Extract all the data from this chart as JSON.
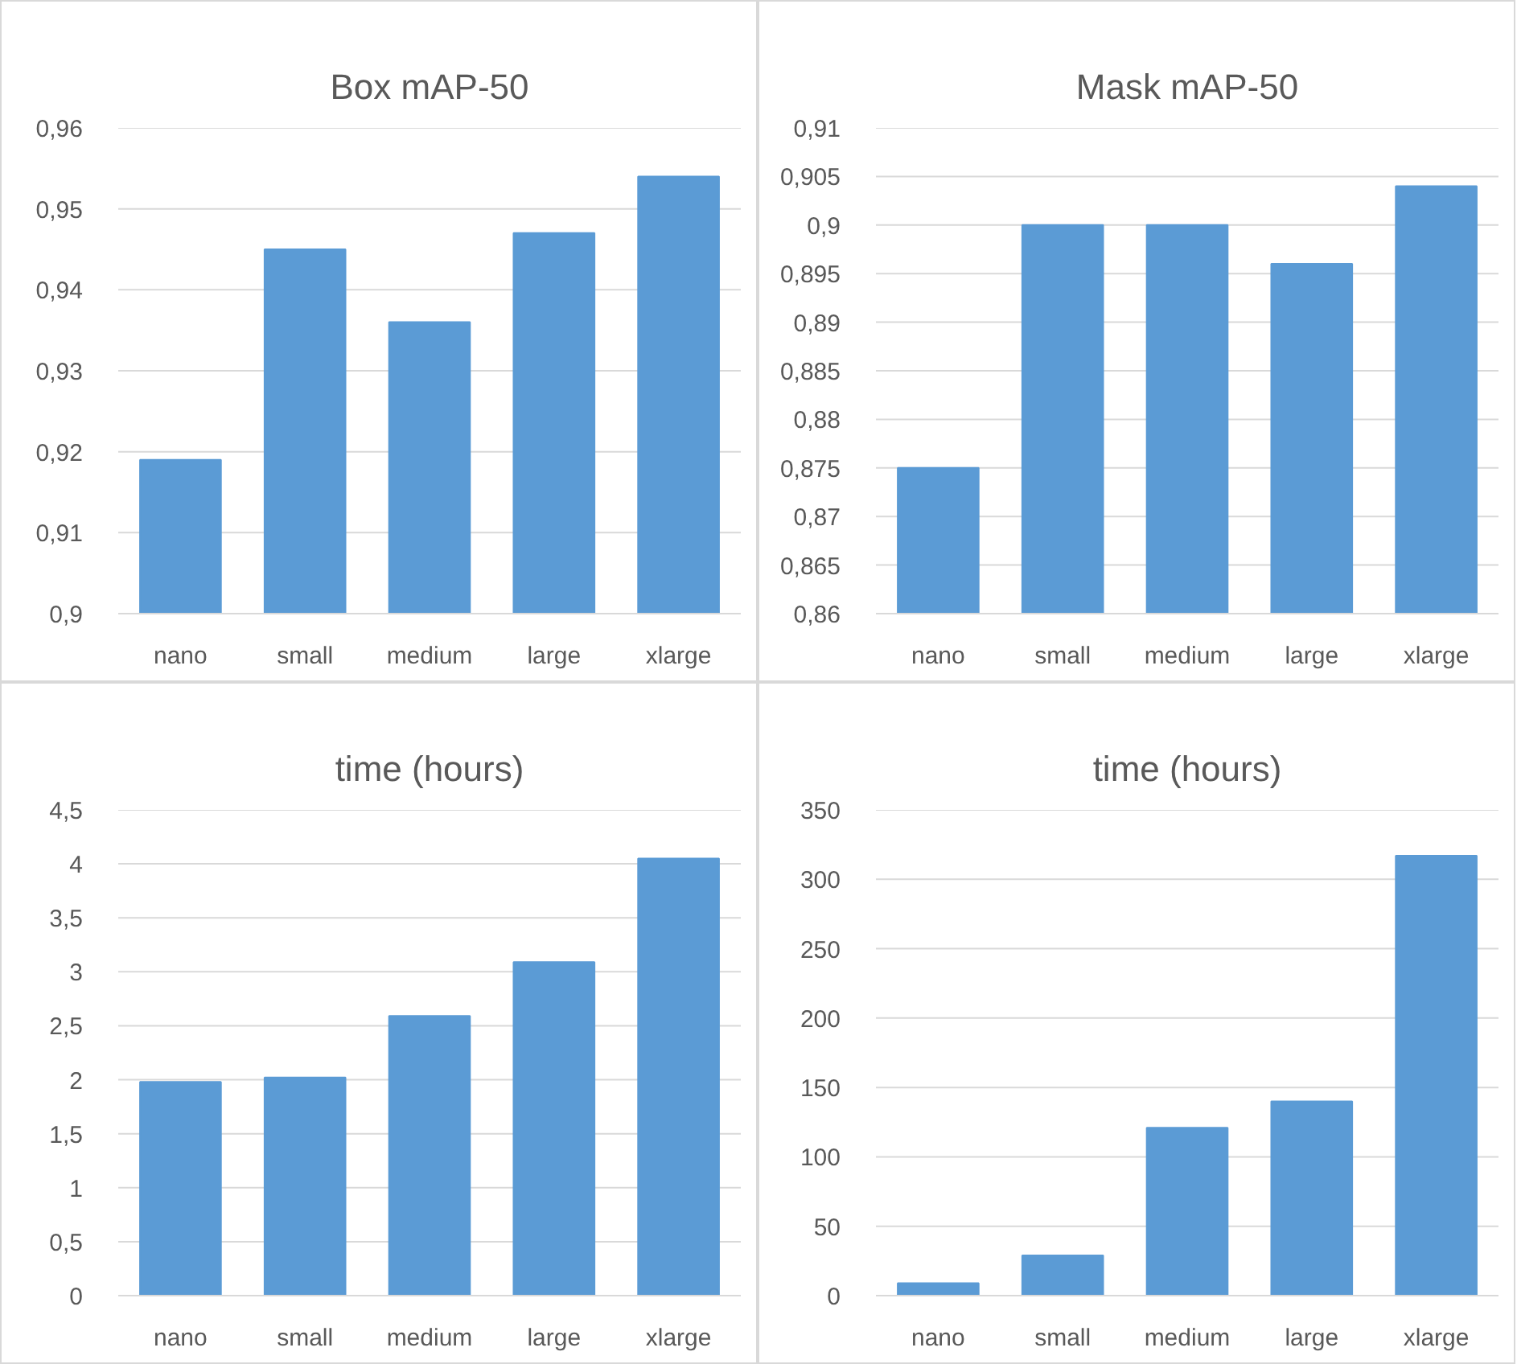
{
  "chart_data": [
    {
      "type": "bar",
      "title": "Box mAP-50",
      "categories": [
        "nano",
        "small",
        "medium",
        "large",
        "xlarge"
      ],
      "values": [
        0.919,
        0.945,
        0.936,
        0.947,
        0.954
      ],
      "color": "#5b9bd5",
      "ylim": [
        0.9,
        0.96
      ],
      "yticks": [
        {
          "value": 0.9,
          "label": "0,9"
        },
        {
          "value": 0.91,
          "label": "0,91"
        },
        {
          "value": 0.92,
          "label": "0,92"
        },
        {
          "value": 0.93,
          "label": "0,93"
        },
        {
          "value": 0.94,
          "label": "0,94"
        },
        {
          "value": 0.95,
          "label": "0,95"
        },
        {
          "value": 0.96,
          "label": "0,96"
        }
      ],
      "grid": "y"
    },
    {
      "type": "bar",
      "title": "Mask mAP-50",
      "categories": [
        "nano",
        "small",
        "medium",
        "large",
        "xlarge"
      ],
      "values": [
        0.875,
        0.9,
        0.9,
        0.896,
        0.904
      ],
      "color": "#5b9bd5",
      "ylim": [
        0.86,
        0.91
      ],
      "yticks": [
        {
          "value": 0.86,
          "label": "0,86"
        },
        {
          "value": 0.865,
          "label": "0,865"
        },
        {
          "value": 0.87,
          "label": "0,87"
        },
        {
          "value": 0.875,
          "label": "0,875"
        },
        {
          "value": 0.88,
          "label": "0,88"
        },
        {
          "value": 0.885,
          "label": "0,885"
        },
        {
          "value": 0.89,
          "label": "0,89"
        },
        {
          "value": 0.895,
          "label": "0,895"
        },
        {
          "value": 0.9,
          "label": "0,9"
        },
        {
          "value": 0.905,
          "label": "0,905"
        },
        {
          "value": 0.91,
          "label": "0,91"
        }
      ],
      "grid": "y"
    },
    {
      "type": "bar",
      "title": "time (hours)",
      "categories": [
        "nano",
        "small",
        "medium",
        "large",
        "xlarge"
      ],
      "values": [
        1.98,
        2.02,
        2.59,
        3.09,
        4.05
      ],
      "color": "#5b9bd5",
      "ylim": [
        0,
        4.5
      ],
      "yticks": [
        0,
        {
          "value": 0.5,
          "label": "0,5"
        },
        1,
        {
          "value": 1.5,
          "label": "1,5"
        },
        2,
        {
          "value": 2.5,
          "label": "2,5"
        },
        3,
        {
          "value": 3.5,
          "label": "3,5"
        },
        4,
        {
          "value": 4.5,
          "label": "4,5"
        }
      ],
      "grid": "y"
    },
    {
      "type": "bar",
      "title": "time (hours)",
      "categories": [
        "nano",
        "small",
        "medium",
        "large",
        "xlarge"
      ],
      "values": [
        9,
        29,
        121,
        140,
        317
      ],
      "color": "#5b9bd5",
      "ylim": [
        0,
        350
      ],
      "yticks": [
        0,
        50,
        100,
        150,
        200,
        250,
        300,
        350
      ],
      "grid": "y"
    }
  ]
}
